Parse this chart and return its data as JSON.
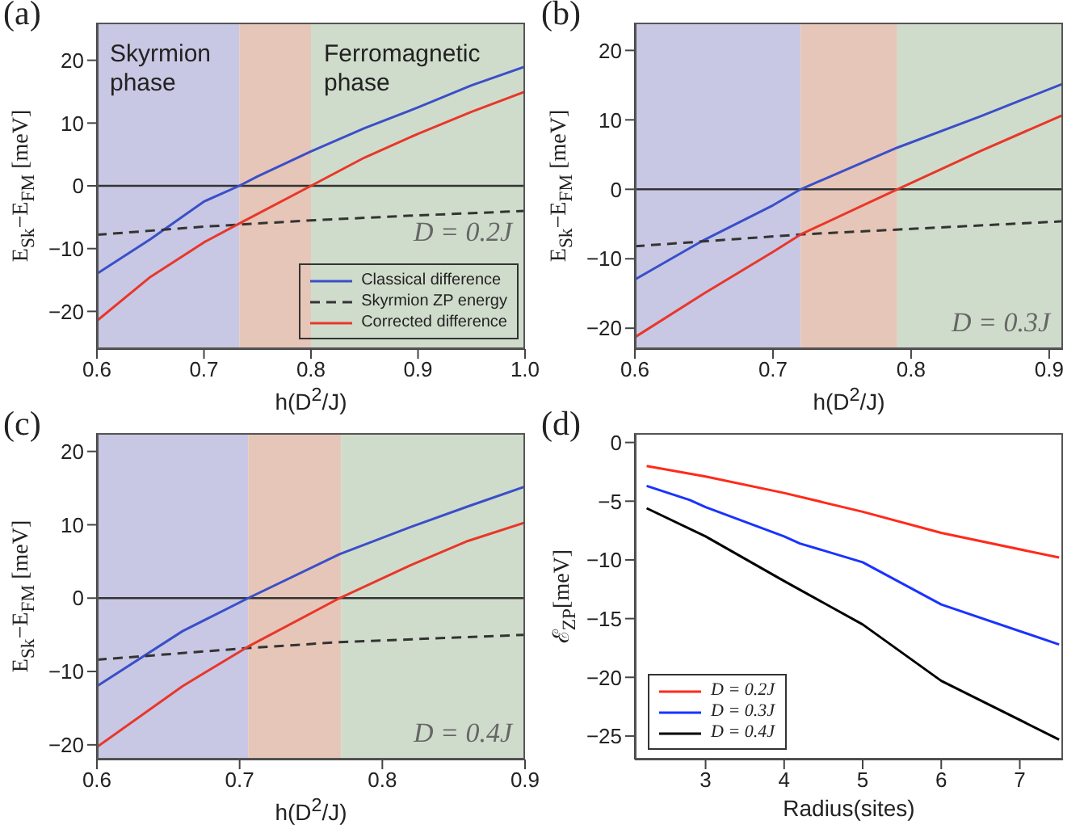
{
  "chart_data": [
    {
      "type": "line",
      "title": "(a)",
      "xlabel": "h(D$^{2}$/J)",
      "ylabel": "E$_{Sk}$−E$_{FM}$ [meV]",
      "xlim": [
        0.6,
        1.0
      ],
      "xticks": [
        0.6,
        0.7,
        0.8,
        0.9,
        {
          "value": 1,
          "label": "1.0"
        }
      ],
      "ylim": [
        -26,
        26
      ],
      "yticks": [
        -20,
        -10,
        0,
        10,
        20
      ],
      "legend": "bottom right",
      "bands": [
        {
          "axis": "x",
          "from": 0.6,
          "to": 0.733,
          "label": "Skyrmion phase",
          "color": "#c8c8e4"
        },
        {
          "axis": "x",
          "from": 0.733,
          "to": 0.8,
          "color": "#e6c6b8"
        },
        {
          "axis": "x",
          "from": 0.8,
          "to": 1.0,
          "label": "Ferromagnetic phase",
          "color": "#d0dccb"
        }
      ],
      "ref_lines": [
        {
          "axis": "y",
          "value": 0,
          "color": "#333333"
        }
      ],
      "annotations": [
        "D = 0.2J"
      ],
      "series": [
        {
          "name": "Classical difference",
          "color": "#3a4fc8",
          "x": [
            0.6,
            0.65,
            0.7,
            0.733,
            0.75,
            0.8,
            0.85,
            0.9,
            0.95,
            1.0
          ],
          "values": [
            -14,
            -8.5,
            -2.5,
            0,
            1.5,
            5.5,
            9.2,
            12.5,
            16,
            19
          ]
        },
        {
          "name": "Skyrmion ZP energy",
          "color": "#333333",
          "line_style": "dashed",
          "x": [
            0.6,
            0.7,
            0.8,
            0.9,
            1.0
          ],
          "values": [
            -7.8,
            -6.5,
            -5.5,
            -4.7,
            -4
          ]
        },
        {
          "name": "Corrected difference",
          "color": "#e8372a",
          "x": [
            0.6,
            0.65,
            0.7,
            0.733,
            0.8,
            0.85,
            0.9,
            0.95,
            1.0
          ],
          "values": [
            -21.5,
            -14.5,
            -9,
            -6,
            0,
            4.5,
            8.3,
            11.8,
            15
          ]
        }
      ]
    },
    {
      "type": "line",
      "title": "(b)",
      "xlabel": "h(D$^{2}$/J)",
      "ylabel": "E$_{Sk}$−E$_{FM}$ [meV]",
      "xlim": [
        0.6,
        0.91
      ],
      "xticks": [
        0.6,
        0.7,
        0.8,
        0.9
      ],
      "ylim": [
        -23,
        24
      ],
      "yticks": [
        -20,
        -10,
        0,
        10,
        20
      ],
      "bands": [
        {
          "axis": "x",
          "from": 0.6,
          "to": 0.72,
          "color": "#c8c8e4"
        },
        {
          "axis": "x",
          "from": 0.72,
          "to": 0.79,
          "color": "#e6c6b8"
        },
        {
          "axis": "x",
          "from": 0.79,
          "to": 0.91,
          "color": "#d0dccb"
        }
      ],
      "ref_lines": [
        {
          "axis": "y",
          "value": 0,
          "color": "#333333"
        }
      ],
      "annotations": [
        "D = 0.3J"
      ],
      "series": [
        {
          "color": "#3a4fc8",
          "x": [
            0.6,
            0.65,
            0.7,
            0.72,
            0.79,
            0.85,
            0.91
          ],
          "values": [
            -13,
            -7.3,
            -2.3,
            0,
            6,
            10.5,
            15.2
          ]
        },
        {
          "color": "#333333",
          "line_style": "dashed",
          "x": [
            0.6,
            0.72,
            0.8,
            0.91
          ],
          "values": [
            -8.2,
            -6.5,
            -5.7,
            -4.6
          ]
        },
        {
          "color": "#e8372a",
          "x": [
            0.6,
            0.65,
            0.7,
            0.72,
            0.79,
            0.85,
            0.91
          ],
          "values": [
            -21.3,
            -15,
            -9,
            -6.5,
            0,
            5.5,
            10.7
          ]
        }
      ]
    },
    {
      "type": "line",
      "title": "(c)",
      "xlabel": "h(D$^{2}$/J)",
      "ylabel": "E$_{Sk}$−E$_{FM}$ [meV]",
      "xlim": [
        0.6,
        0.9
      ],
      "xticks": [
        0.6,
        0.7,
        0.8,
        0.9
      ],
      "ylim": [
        -22,
        22.5
      ],
      "yticks": [
        -20,
        -10,
        0,
        10,
        20
      ],
      "bands": [
        {
          "axis": "x",
          "from": 0.6,
          "to": 0.706,
          "color": "#c8c8e4"
        },
        {
          "axis": "x",
          "from": 0.706,
          "to": 0.771,
          "color": "#e6c6b8"
        },
        {
          "axis": "x",
          "from": 0.771,
          "to": 0.9,
          "color": "#d0dccb"
        }
      ],
      "ref_lines": [
        {
          "axis": "y",
          "value": 0,
          "color": "#333333"
        }
      ],
      "annotations": [
        "D = 0.4J"
      ],
      "series": [
        {
          "color": "#3a4fc8",
          "x": [
            0.6,
            0.66,
            0.706,
            0.77,
            0.82,
            0.86,
            0.9
          ],
          "values": [
            -12,
            -4.5,
            0,
            6,
            9.7,
            12.5,
            15.2
          ]
        },
        {
          "color": "#333333",
          "line_style": "dashed",
          "x": [
            0.6,
            0.706,
            0.77,
            0.9
          ],
          "values": [
            -8.4,
            -6.8,
            -6,
            -5
          ]
        },
        {
          "color": "#e8372a",
          "x": [
            0.6,
            0.66,
            0.706,
            0.77,
            0.82,
            0.86,
            0.9
          ],
          "values": [
            -20.3,
            -12,
            -6.6,
            0,
            4.5,
            7.8,
            10.3
          ]
        }
      ]
    },
    {
      "type": "line",
      "title": "(d)",
      "xlabel": "Radius(sites)",
      "ylabel": "ℰ$_{ZP}$[meV]",
      "xlim": [
        2.1,
        7.55
      ],
      "xticks": [
        3,
        4,
        5,
        6,
        7
      ],
      "ylim": [
        -27,
        0.8
      ],
      "yticks": [
        -25,
        -20,
        -15,
        -10,
        -5,
        0
      ],
      "legend": "bottom left",
      "series": [
        {
          "name": "D = 0.2J",
          "color": "#ff2a1a",
          "x": [
            2.25,
            3,
            4,
            5,
            6,
            7.5
          ],
          "values": [
            -2,
            -2.9,
            -4.3,
            -5.9,
            -7.7,
            -9.8
          ]
        },
        {
          "name": "D = 0.3J",
          "color": "#1a33ff",
          "x": [
            2.25,
            2.8,
            3,
            4,
            4.2,
            5,
            6,
            7.5
          ],
          "values": [
            -3.7,
            -4.9,
            -5.5,
            -8,
            -8.6,
            -10.2,
            -13.8,
            -17.2
          ]
        },
        {
          "name": "D = 0.4J",
          "color": "#000000",
          "x": [
            2.25,
            3,
            4,
            5,
            6,
            7.5
          ],
          "values": [
            -5.6,
            -8,
            -11.8,
            -15.5,
            -20.3,
            -25.3
          ]
        }
      ]
    }
  ]
}
